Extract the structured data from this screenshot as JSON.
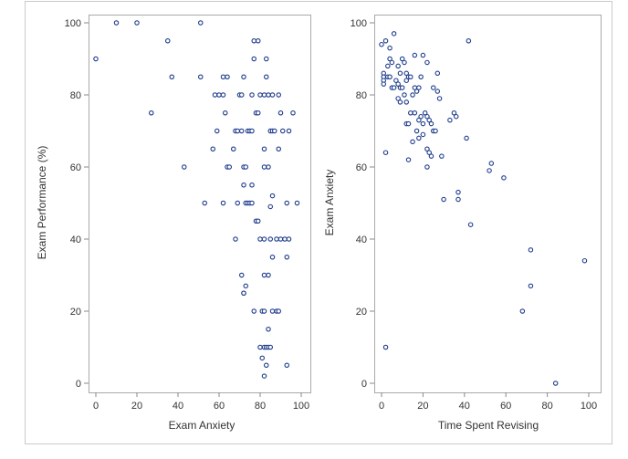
{
  "chart_data": [
    {
      "type": "scatter",
      "xlabel": "Exam Anxiety",
      "ylabel": "Exam Performance (%)",
      "xlim": [
        0,
        100
      ],
      "ylim": [
        0,
        100
      ],
      "xticks": [
        0,
        20,
        40,
        60,
        80,
        100
      ],
      "yticks": [
        0,
        20,
        40,
        60,
        80,
        100
      ],
      "marker_color": "#1f3d8c",
      "points": [
        [
          0,
          90
        ],
        [
          10,
          100
        ],
        [
          20,
          100
        ],
        [
          51,
          100
        ],
        [
          35,
          95
        ],
        [
          37,
          85
        ],
        [
          27,
          75
        ],
        [
          43,
          60
        ],
        [
          51,
          85
        ],
        [
          58,
          80
        ],
        [
          60,
          80
        ],
        [
          62,
          80
        ],
        [
          62,
          85
        ],
        [
          64,
          85
        ],
        [
          63,
          75
        ],
        [
          64,
          60
        ],
        [
          65,
          60
        ],
        [
          59,
          70
        ],
        [
          57,
          65
        ],
        [
          53,
          50
        ],
        [
          62,
          50
        ],
        [
          67,
          65
        ],
        [
          68,
          70
        ],
        [
          69,
          70
        ],
        [
          70,
          80
        ],
        [
          71,
          80
        ],
        [
          71,
          70
        ],
        [
          72,
          60
        ],
        [
          73,
          60
        ],
        [
          72,
          85
        ],
        [
          73,
          50
        ],
        [
          74,
          50
        ],
        [
          75,
          50
        ],
        [
          76,
          50
        ],
        [
          74,
          70
        ],
        [
          75,
          70
        ],
        [
          76,
          70
        ],
        [
          76,
          80
        ],
        [
          77,
          90
        ],
        [
          77,
          95
        ],
        [
          78,
          75
        ],
        [
          79,
          75
        ],
        [
          80,
          80
        ],
        [
          79,
          95
        ],
        [
          82,
          80
        ],
        [
          83,
          90
        ],
        [
          84,
          80
        ],
        [
          83,
          85
        ],
        [
          86,
          80
        ],
        [
          85,
          70
        ],
        [
          86,
          70
        ],
        [
          87,
          70
        ],
        [
          89,
          80
        ],
        [
          89,
          65
        ],
        [
          90,
          75
        ],
        [
          91,
          70
        ],
        [
          94,
          70
        ],
        [
          96,
          75
        ],
        [
          98,
          50
        ],
        [
          84,
          60
        ],
        [
          82,
          60
        ],
        [
          82,
          65
        ],
        [
          76,
          55
        ],
        [
          72,
          55
        ],
        [
          69,
          50
        ],
        [
          68,
          40
        ],
        [
          78,
          45
        ],
        [
          79,
          45
        ],
        [
          80,
          40
        ],
        [
          82,
          40
        ],
        [
          85,
          49
        ],
        [
          86,
          52
        ],
        [
          85,
          40
        ],
        [
          88,
          40
        ],
        [
          90,
          40
        ],
        [
          92,
          40
        ],
        [
          93,
          50
        ],
        [
          94,
          40
        ],
        [
          86,
          35
        ],
        [
          93,
          35
        ],
        [
          71,
          30
        ],
        [
          73,
          27
        ],
        [
          72,
          25
        ],
        [
          72,
          25
        ],
        [
          82,
          30
        ],
        [
          84,
          30
        ],
        [
          86,
          20
        ],
        [
          88,
          20
        ],
        [
          89,
          20
        ],
        [
          77,
          20
        ],
        [
          81,
          20
        ],
        [
          82,
          20
        ],
        [
          80,
          10
        ],
        [
          82,
          10
        ],
        [
          83,
          10
        ],
        [
          84,
          10
        ],
        [
          85,
          10
        ],
        [
          84,
          15
        ],
        [
          81,
          7
        ],
        [
          83,
          5
        ],
        [
          82,
          2
        ],
        [
          93,
          5
        ]
      ]
    },
    {
      "type": "scatter",
      "xlabel": "Time Spent Revising",
      "ylabel": "Exam Anxiety",
      "xlim": [
        0,
        100
      ],
      "ylim": [
        0,
        100
      ],
      "xticks": [
        0,
        20,
        40,
        60,
        80,
        100
      ],
      "yticks": [
        0,
        20,
        40,
        60,
        80,
        100
      ],
      "marker_color": "#1f3d8c",
      "points": [
        [
          0,
          94
        ],
        [
          2,
          95
        ],
        [
          4,
          93
        ],
        [
          6,
          97
        ],
        [
          4,
          90
        ],
        [
          5,
          89
        ],
        [
          3,
          88
        ],
        [
          1,
          86
        ],
        [
          1,
          85
        ],
        [
          1,
          84
        ],
        [
          1,
          83
        ],
        [
          3,
          85
        ],
        [
          4,
          85
        ],
        [
          5,
          82
        ],
        [
          6,
          82
        ],
        [
          7,
          84
        ],
        [
          8,
          88
        ],
        [
          9,
          86
        ],
        [
          10,
          90
        ],
        [
          11,
          89
        ],
        [
          12,
          86
        ],
        [
          8,
          83
        ],
        [
          9,
          82
        ],
        [
          10,
          82
        ],
        [
          11,
          80
        ],
        [
          12,
          84
        ],
        [
          13,
          85
        ],
        [
          14,
          85
        ],
        [
          15,
          80
        ],
        [
          16,
          82
        ],
        [
          17,
          81
        ],
        [
          18,
          82
        ],
        [
          19,
          85
        ],
        [
          20,
          91
        ],
        [
          22,
          89
        ],
        [
          8,
          79
        ],
        [
          9,
          78
        ],
        [
          12,
          78
        ],
        [
          14,
          75
        ],
        [
          16,
          75
        ],
        [
          18,
          73
        ],
        [
          19,
          74
        ],
        [
          20,
          72
        ],
        [
          21,
          75
        ],
        [
          22,
          74
        ],
        [
          23,
          73
        ],
        [
          24,
          72
        ],
        [
          25,
          70
        ],
        [
          26,
          70
        ],
        [
          12,
          72
        ],
        [
          13,
          72
        ],
        [
          17,
          70
        ],
        [
          18,
          68
        ],
        [
          15,
          67
        ],
        [
          20,
          69
        ],
        [
          22,
          65
        ],
        [
          23,
          64
        ],
        [
          24,
          63
        ],
        [
          25,
          82
        ],
        [
          27,
          86
        ],
        [
          27,
          81
        ],
        [
          28,
          79
        ],
        [
          33,
          73
        ],
        [
          35,
          75
        ],
        [
          36,
          74
        ],
        [
          16,
          91
        ],
        [
          13,
          62
        ],
        [
          22,
          60
        ],
        [
          29,
          63
        ],
        [
          30,
          51
        ],
        [
          37,
          51
        ],
        [
          37,
          53
        ],
        [
          41,
          68
        ],
        [
          42,
          95
        ],
        [
          43,
          44
        ],
        [
          52,
          59
        ],
        [
          53,
          61
        ],
        [
          59,
          57
        ],
        [
          68,
          20
        ],
        [
          72,
          37
        ],
        [
          72,
          27
        ],
        [
          84,
          0
        ],
        [
          98,
          34
        ],
        [
          2,
          64
        ],
        [
          2,
          10
        ]
      ]
    }
  ]
}
